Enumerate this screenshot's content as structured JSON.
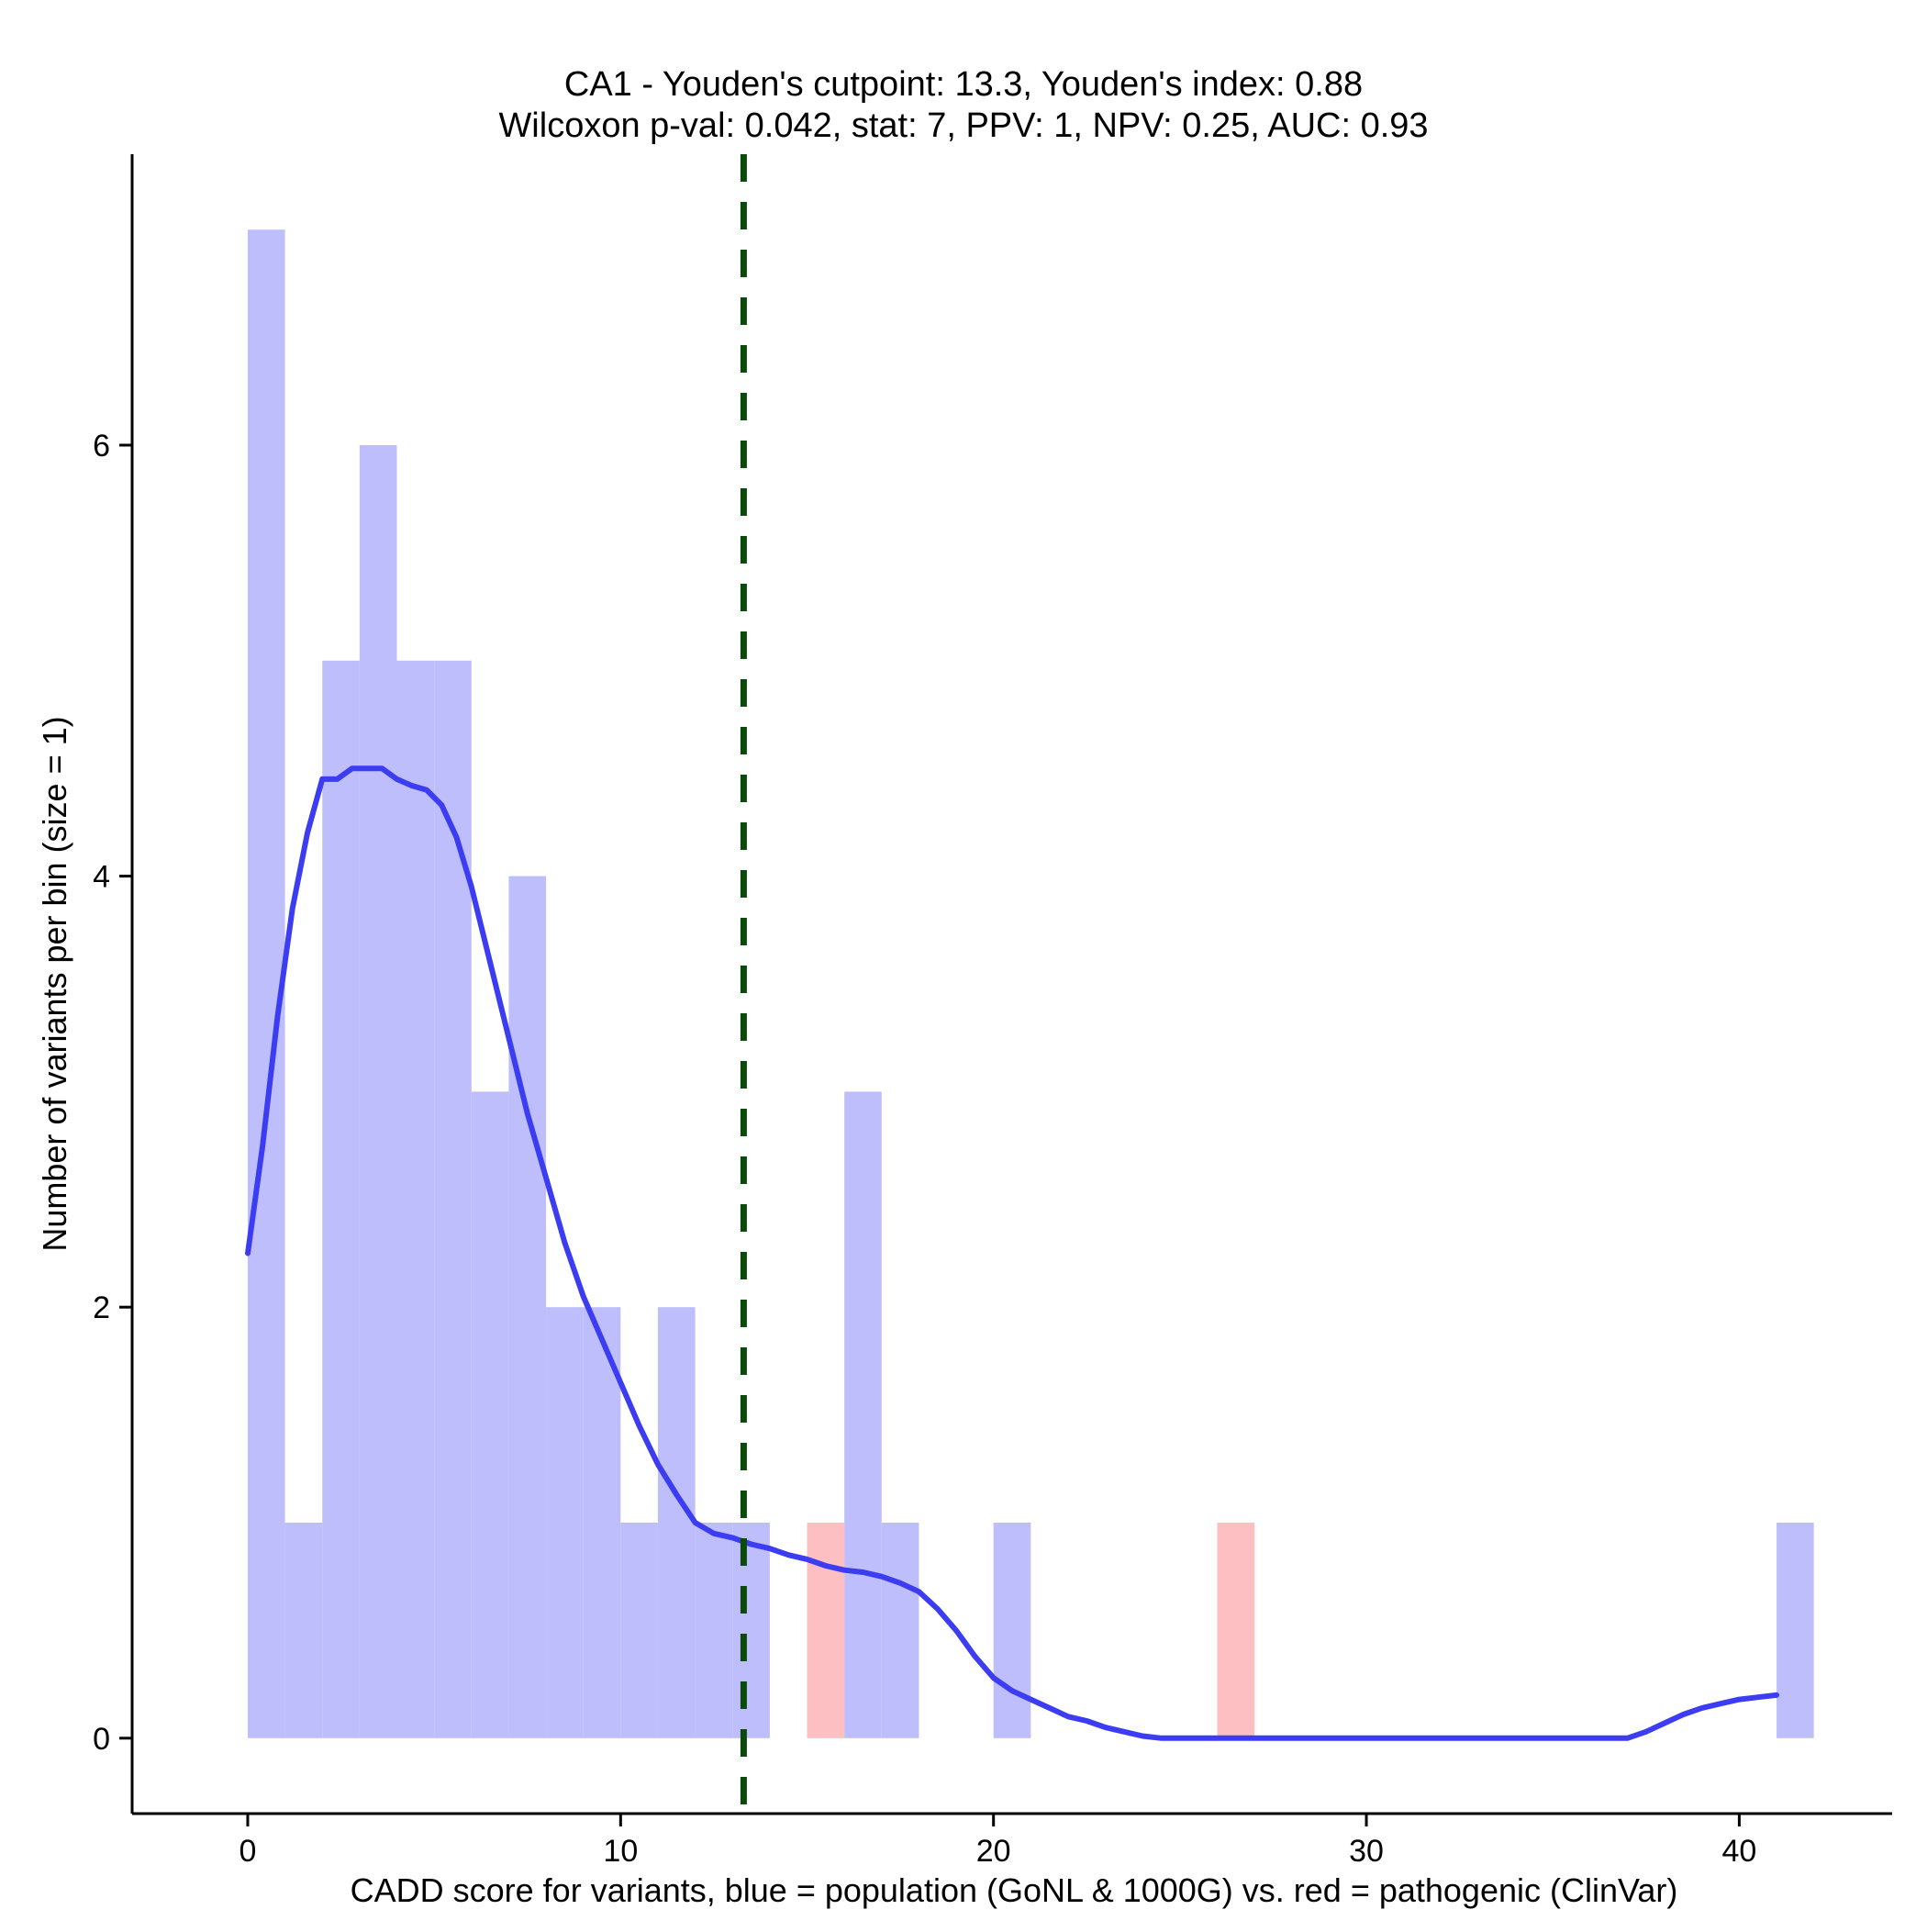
{
  "chart_data": {
    "type": "bar",
    "title_lines": [
      "CA1 - Youden's cutpoint: 13.3, Youden's index: 0.88",
      "Wilcoxon p-val: 0.042, stat: 7, PPV: 1, NPV: 0.25, AUC: 0.93"
    ],
    "xlabel": "CADD score for variants, blue = population (GoNL & 1000G) vs. red = pathogenic (ClinVar)",
    "ylabel": "Number of variants per bin (size = 1)",
    "xlim": [
      -3.1,
      44.1
    ],
    "ylim": [
      -0.35,
      7.35
    ],
    "x_ticks": [
      0,
      10,
      20,
      30,
      40
    ],
    "y_ticks": [
      0,
      2,
      4,
      6
    ],
    "bin_size": 1,
    "cutpoint": 13.3,
    "colors": {
      "population": "#bebefc",
      "pathogenic": "#fdbfc2",
      "density": "#3c3cf2",
      "cutpoint": "#0a4a0a",
      "axis": "#000000"
    },
    "series": [
      {
        "name": "population",
        "bins": [
          {
            "x0": 0,
            "x1": 1,
            "count": 7
          },
          {
            "x0": 1,
            "x1": 2,
            "count": 1
          },
          {
            "x0": 2,
            "x1": 3,
            "count": 5
          },
          {
            "x0": 3,
            "x1": 4,
            "count": 6
          },
          {
            "x0": 4,
            "x1": 5,
            "count": 5
          },
          {
            "x0": 5,
            "x1": 6,
            "count": 5
          },
          {
            "x0": 6,
            "x1": 7,
            "count": 3
          },
          {
            "x0": 7,
            "x1": 8,
            "count": 4
          },
          {
            "x0": 8,
            "x1": 9,
            "count": 2
          },
          {
            "x0": 9,
            "x1": 10,
            "count": 2
          },
          {
            "x0": 10,
            "x1": 11,
            "count": 1
          },
          {
            "x0": 11,
            "x1": 12,
            "count": 2
          },
          {
            "x0": 12,
            "x1": 13,
            "count": 1
          },
          {
            "x0": 13,
            "x1": 14,
            "count": 1
          },
          {
            "x0": 16,
            "x1": 17,
            "count": 3
          },
          {
            "x0": 17,
            "x1": 18,
            "count": 1
          },
          {
            "x0": 20,
            "x1": 21,
            "count": 1
          },
          {
            "x0": 41,
            "x1": 42,
            "count": 1
          }
        ]
      },
      {
        "name": "pathogenic",
        "bins": [
          {
            "x0": 15,
            "x1": 16,
            "count": 1
          },
          {
            "x0": 26,
            "x1": 27,
            "count": 1
          }
        ]
      }
    ],
    "density_curve": {
      "x": [
        0,
        0.4,
        0.8,
        1.2,
        1.6,
        2.0,
        2.4,
        2.8,
        3.2,
        3.6,
        4.0,
        4.4,
        4.8,
        5.2,
        5.6,
        6.0,
        6.5,
        7.0,
        7.5,
        8.0,
        8.5,
        9.0,
        9.5,
        10.0,
        10.5,
        11.0,
        11.5,
        12.0,
        12.5,
        13.0,
        13.5,
        14.0,
        14.5,
        15.0,
        15.5,
        16.0,
        16.5,
        17.0,
        17.5,
        18.0,
        18.5,
        19.0,
        19.5,
        20.0,
        20.5,
        21.0,
        21.5,
        22.0,
        22.5,
        23.0,
        23.5,
        24.0,
        24.5,
        25.0,
        26.0,
        28.0,
        30.0,
        32.0,
        34.0,
        36.0,
        37.0,
        37.5,
        38.0,
        38.5,
        39.0,
        39.5,
        40.0,
        40.5,
        41.0
      ],
      "y": [
        2.25,
        2.75,
        3.35,
        3.85,
        4.2,
        4.45,
        4.45,
        4.5,
        4.5,
        4.5,
        4.45,
        4.42,
        4.4,
        4.33,
        4.18,
        3.95,
        3.6,
        3.25,
        2.9,
        2.6,
        2.3,
        2.05,
        1.85,
        1.65,
        1.45,
        1.27,
        1.13,
        1.0,
        0.95,
        0.93,
        0.9,
        0.88,
        0.85,
        0.83,
        0.8,
        0.78,
        0.77,
        0.75,
        0.72,
        0.68,
        0.6,
        0.5,
        0.38,
        0.28,
        0.22,
        0.18,
        0.14,
        0.1,
        0.08,
        0.05,
        0.03,
        0.01,
        0.0,
        0.0,
        0.0,
        0.0,
        0.0,
        0.0,
        0.0,
        0.0,
        0.0,
        0.03,
        0.07,
        0.11,
        0.14,
        0.16,
        0.18,
        0.19,
        0.2
      ]
    },
    "grid": false,
    "legend": "none"
  }
}
